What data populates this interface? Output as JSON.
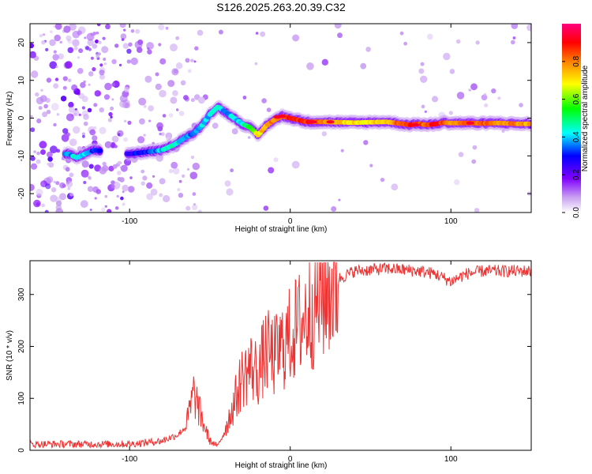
{
  "title": "S126.2025.263.20.39.C32",
  "chart_data": [
    {
      "type": "heatmap",
      "xlabel": "Height of straight line (km)",
      "ylabel": "Frequency (Hz)",
      "xlim": [
        -162,
        150
      ],
      "ylim": [
        -25,
        25
      ],
      "xticks": [
        -100,
        0,
        100
      ],
      "yticks": [
        -20,
        -10,
        0,
        10,
        20
      ],
      "colorbar": {
        "label": "Normalized spectral amplitude",
        "range": [
          0,
          1
        ],
        "ticks": [
          "0.0",
          "0.2",
          "0.4",
          "0.6",
          "0.8"
        ],
        "colors": [
          "#ffffff",
          "#c8a0f0",
          "#8000ff",
          "#0000ff",
          "#00ffff",
          "#00ff00",
          "#ffff00",
          "#ff8000",
          "#ff0000",
          "#ff0080"
        ]
      },
      "ridge": {
        "x": [
          -138,
          -133,
          -128,
          -122,
          -100,
          -90,
          -80,
          -72,
          -65,
          -60,
          -55,
          -50,
          -45,
          -40,
          -35,
          -30,
          -25,
          -20,
          -15,
          -10,
          -5,
          0,
          10,
          20,
          40,
          60,
          75,
          80,
          85,
          90,
          95,
          100,
          110,
          120,
          130,
          140,
          150
        ],
        "freq": [
          -9.5,
          -10.5,
          -9.5,
          -8.5,
          -9.5,
          -9.0,
          -8.5,
          -7.0,
          -5.0,
          -4.0,
          -2.0,
          1.0,
          3.0,
          1.5,
          0,
          -1.5,
          -2.5,
          -4.5,
          -2.0,
          -0.5,
          0.5,
          0,
          -1.0,
          -1.0,
          -1.2,
          -1.0,
          -1.8,
          -1.5,
          -1.8,
          -1.6,
          -1.2,
          -1.3,
          -1.3,
          -1.4,
          -1.3,
          -1.5,
          -1.5
        ],
        "amp": [
          0.35,
          0.45,
          0.4,
          0.3,
          0.25,
          0.3,
          0.4,
          0.45,
          0.4,
          0.35,
          0.4,
          0.4,
          0.45,
          0.35,
          0.4,
          0.45,
          0.55,
          0.7,
          0.75,
          0.8,
          0.85,
          0.9,
          0.85,
          0.8,
          0.7,
          0.75,
          0.9,
          0.85,
          0.8,
          0.95,
          0.85,
          0.8,
          0.8,
          0.85,
          0.8,
          0.8,
          0.75
        ]
      }
    },
    {
      "type": "line",
      "xlabel": "Height of straight line (km)",
      "ylabel": "SNR (10 * v/v)",
      "xlim": [
        -162,
        150
      ],
      "ylim": [
        0,
        365
      ],
      "xticks": [
        -100,
        0,
        100
      ],
      "yticks": [
        0,
        100,
        200,
        300
      ],
      "color": "#ee3333",
      "envelope": {
        "x": [
          -162,
          -100,
          -80,
          -70,
          -65,
          -60,
          -55,
          -50,
          -45,
          -40,
          -35,
          -30,
          -25,
          -20,
          -15,
          -10,
          -5,
          0,
          10,
          20,
          30,
          40,
          60,
          80,
          90,
          100,
          110,
          120,
          130,
          140,
          150
        ],
        "snr": [
          12,
          12,
          18,
          30,
          45,
          110,
          60,
          18,
          8,
          45,
          90,
          140,
          160,
          150,
          190,
          180,
          200,
          220,
          260,
          300,
          330,
          345,
          350,
          345,
          340,
          325,
          340,
          345,
          345,
          345,
          345
        ]
      }
    }
  ]
}
